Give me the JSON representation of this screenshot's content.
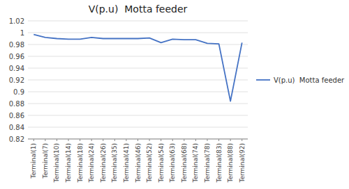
{
  "chart_data": {
    "type": "line",
    "title": "V(p.u)  Motta feeder",
    "categories": [
      "Terminal(1)",
      "Terminal(7)",
      "Terminal(10)",
      "Terminal(14)",
      "Terminal(18)",
      "Terminal(24)",
      "Terminal(26)",
      "Terminal(35)",
      "Terminal(41)",
      "Terminal(46)",
      "Terminal(52)",
      "Terminal(54)",
      "Terminal(63)",
      "Terminal(68)",
      "Terminal(74)",
      "Terminal(78)",
      "Terminal(83)",
      "Terminal(88)",
      "Terminal(92)"
    ],
    "series": [
      {
        "name": "V(p.u)  Motta feeder",
        "color": "#4472C4",
        "values": [
          0.997,
          0.992,
          0.99,
          0.989,
          0.989,
          0.992,
          0.99,
          0.99,
          0.99,
          0.99,
          0.991,
          0.983,
          0.989,
          0.988,
          0.988,
          0.982,
          0.981,
          0.884,
          0.983
        ]
      }
    ],
    "ylim": [
      0.82,
      1.02
    ],
    "yticks": [
      0.82,
      0.84,
      0.86,
      0.88,
      0.9,
      0.92,
      0.94,
      0.96,
      0.98,
      1,
      1.02
    ],
    "grid": true,
    "legend": "right"
  }
}
